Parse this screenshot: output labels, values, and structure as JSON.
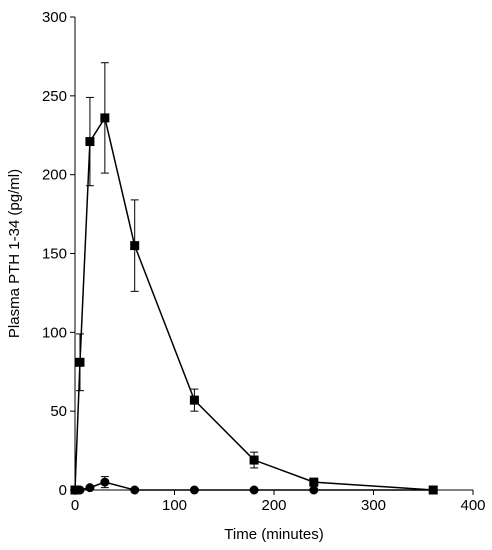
{
  "chart_data": {
    "type": "scatter",
    "title": "",
    "xlabel": "Time (minutes)",
    "ylabel": "Plasma PTH 1-34 (pg/ml)",
    "xlim": [
      0,
      400
    ],
    "ylim": [
      0,
      300
    ],
    "x_ticks": [
      0,
      100,
      200,
      300,
      400
    ],
    "y_ticks": [
      0,
      50,
      100,
      150,
      200,
      250,
      300
    ],
    "grid": false,
    "legend": "none",
    "series": [
      {
        "marker": "square",
        "color": "#000000",
        "x": [
          0,
          5,
          15,
          30,
          60,
          120,
          180,
          240,
          360
        ],
        "y": [
          0,
          81,
          221,
          236,
          155,
          57,
          19,
          5,
          0
        ],
        "error": [
          0,
          18,
          28,
          35,
          29,
          7,
          5,
          2,
          0
        ]
      },
      {
        "marker": "circle",
        "color": "#000000",
        "x": [
          0,
          5,
          15,
          30,
          60,
          120,
          180,
          240,
          360
        ],
        "y": [
          0,
          0,
          1.5,
          5,
          0,
          0,
          0,
          0,
          0
        ],
        "error": [
          0,
          0,
          1,
          3.5,
          0,
          0,
          0,
          0,
          0
        ]
      }
    ]
  }
}
